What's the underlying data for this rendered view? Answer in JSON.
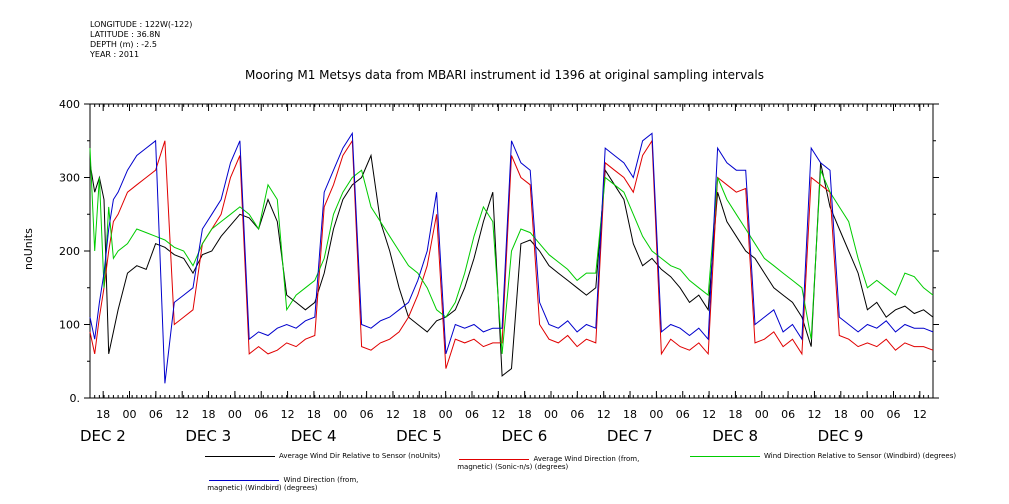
{
  "meta": {
    "longitude": "LONGITUDE : 122W(-122)",
    "latitude": "LATITUDE : 36.8N",
    "depth": "DEPTH (m) : -2.5",
    "year": "YEAR : 2011"
  },
  "chart_data": {
    "type": "line",
    "title": "Mooring M1 Metsys data from MBARI instrument id 1396 at original sampling intervals",
    "ylabel": "noUnits",
    "ylim": [
      0,
      400
    ],
    "yticks": [
      "0.",
      "100",
      "200",
      "300",
      "400"
    ],
    "xlim": [
      0,
      180
    ],
    "hour_ticks": [
      "18",
      "00",
      "06",
      "12",
      "18",
      "00",
      "06",
      "12",
      "18",
      "00",
      "06",
      "12",
      "18",
      "00",
      "06",
      "12",
      "18",
      "00",
      "06",
      "12",
      "18",
      "00",
      "06",
      "12",
      "18",
      "00",
      "06",
      "12",
      "18",
      "00",
      "06",
      "12"
    ],
    "day_labels": [
      "DEC  2",
      "DEC  3",
      "DEC  4",
      "DEC  5",
      "DEC  6",
      "DEC  7",
      "DEC  8",
      "DEC  9"
    ],
    "colors": {
      "black": "#000000",
      "red": "#e00000",
      "green": "#00cc00",
      "blue": "#0000cc"
    },
    "series": [
      {
        "name": "Average Wind Dir Relative to Sensor (noUnits)",
        "color": "#000000",
        "x": [
          0,
          1,
          2,
          3,
          4,
          5,
          6,
          8,
          10,
          12,
          14,
          16,
          18,
          20,
          22,
          24,
          26,
          28,
          30,
          32,
          34,
          36,
          38,
          40,
          42,
          44,
          46,
          48,
          50,
          52,
          54,
          56,
          58,
          60,
          62,
          64,
          66,
          68,
          70,
          72,
          74,
          76,
          78,
          80,
          82,
          84,
          86,
          88,
          90,
          92,
          94,
          96,
          98,
          100,
          102,
          104,
          106,
          108,
          110,
          112,
          114,
          116,
          118,
          120,
          122,
          124,
          126,
          128,
          130,
          132,
          134,
          136,
          138,
          140,
          142,
          144,
          146,
          148,
          150,
          152,
          154,
          156,
          158,
          160,
          162,
          164,
          166,
          168,
          170,
          172,
          174,
          176,
          178,
          180
        ],
        "y": [
          320,
          280,
          300,
          270,
          60,
          90,
          120,
          170,
          180,
          175,
          210,
          205,
          195,
          190,
          170,
          195,
          200,
          220,
          235,
          250,
          245,
          230,
          270,
          240,
          140,
          130,
          120,
          130,
          170,
          230,
          270,
          290,
          300,
          330,
          240,
          200,
          150,
          110,
          100,
          90,
          105,
          110,
          120,
          150,
          190,
          240,
          280,
          30,
          40,
          210,
          215,
          200,
          180,
          170,
          160,
          150,
          140,
          150,
          310,
          290,
          270,
          210,
          180,
          190,
          175,
          165,
          150,
          130,
          140,
          120,
          280,
          240,
          220,
          200,
          190,
          170,
          150,
          140,
          130,
          110,
          70,
          320,
          260,
          230,
          200,
          170,
          120,
          130,
          110,
          120,
          125,
          115,
          120,
          110
        ]
      },
      {
        "name": "Average Wind Direction (from, magnetic) (Sonic-n/s) (degrees)",
        "color": "#e00000",
        "x": [
          0,
          1,
          2,
          3,
          4,
          5,
          6,
          8,
          10,
          12,
          14,
          16,
          18,
          20,
          22,
          24,
          26,
          28,
          30,
          32,
          34,
          36,
          38,
          40,
          42,
          44,
          46,
          48,
          50,
          52,
          54,
          56,
          58,
          60,
          62,
          64,
          66,
          68,
          70,
          72,
          74,
          76,
          78,
          80,
          82,
          84,
          86,
          88,
          90,
          92,
          94,
          96,
          98,
          100,
          102,
          104,
          106,
          108,
          110,
          112,
          114,
          116,
          118,
          120,
          122,
          124,
          126,
          128,
          130,
          132,
          134,
          136,
          138,
          140,
          142,
          144,
          146,
          148,
          150,
          152,
          154,
          156,
          158,
          160,
          162,
          164,
          166,
          168,
          170,
          172,
          174,
          176,
          178,
          180
        ],
        "y": [
          90,
          60,
          110,
          150,
          200,
          240,
          250,
          280,
          290,
          300,
          310,
          350,
          100,
          110,
          120,
          210,
          230,
          250,
          300,
          330,
          60,
          70,
          60,
          65,
          75,
          70,
          80,
          85,
          260,
          290,
          330,
          350,
          70,
          65,
          75,
          80,
          90,
          110,
          140,
          180,
          250,
          40,
          80,
          75,
          80,
          70,
          75,
          75,
          330,
          300,
          290,
          100,
          80,
          75,
          85,
          70,
          80,
          75,
          320,
          310,
          300,
          280,
          330,
          350,
          60,
          80,
          70,
          65,
          75,
          60,
          300,
          290,
          280,
          285,
          75,
          80,
          90,
          70,
          80,
          60,
          300,
          290,
          280,
          85,
          80,
          70,
          75,
          70,
          80,
          65,
          75,
          70,
          70,
          65
        ]
      },
      {
        "name": "Wind Direction Relative to Sensor (Windbird) (degrees)",
        "color": "#00cc00",
        "x": [
          0,
          1,
          2,
          3,
          4,
          5,
          6,
          8,
          10,
          12,
          14,
          16,
          18,
          20,
          22,
          24,
          26,
          28,
          30,
          32,
          34,
          36,
          38,
          40,
          42,
          44,
          46,
          48,
          50,
          52,
          54,
          56,
          58,
          60,
          62,
          64,
          66,
          68,
          70,
          72,
          74,
          76,
          78,
          80,
          82,
          84,
          86,
          88,
          90,
          92,
          94,
          96,
          98,
          100,
          102,
          104,
          106,
          108,
          110,
          112,
          114,
          116,
          118,
          120,
          122,
          124,
          126,
          128,
          130,
          132,
          134,
          136,
          138,
          140,
          142,
          144,
          146,
          148,
          150,
          152,
          154,
          156,
          158,
          160,
          162,
          164,
          166,
          168,
          170,
          172,
          174,
          176,
          178,
          180
        ],
        "y": [
          340,
          200,
          300,
          150,
          260,
          190,
          200,
          210,
          230,
          225,
          220,
          215,
          205,
          200,
          180,
          210,
          230,
          240,
          250,
          260,
          250,
          230,
          290,
          270,
          120,
          140,
          150,
          160,
          190,
          250,
          280,
          300,
          310,
          260,
          240,
          220,
          200,
          180,
          170,
          150,
          120,
          110,
          130,
          170,
          220,
          260,
          240,
          60,
          200,
          230,
          225,
          210,
          195,
          185,
          175,
          160,
          170,
          170,
          300,
          290,
          280,
          250,
          220,
          200,
          190,
          180,
          175,
          160,
          150,
          140,
          300,
          270,
          250,
          230,
          210,
          190,
          180,
          170,
          160,
          150,
          80,
          310,
          280,
          260,
          240,
          190,
          150,
          160,
          150,
          140,
          170,
          165,
          150,
          140
        ]
      },
      {
        "name": "Wind Direction (from, magnetic) (Windbird) (degrees)",
        "color": "#0000cc",
        "x": [
          0,
          1,
          2,
          3,
          4,
          5,
          6,
          8,
          10,
          12,
          14,
          16,
          18,
          20,
          22,
          24,
          26,
          28,
          30,
          32,
          34,
          36,
          38,
          40,
          42,
          44,
          46,
          48,
          50,
          52,
          54,
          56,
          58,
          60,
          62,
          64,
          66,
          68,
          70,
          72,
          74,
          76,
          78,
          80,
          82,
          84,
          86,
          88,
          90,
          92,
          94,
          96,
          98,
          100,
          102,
          104,
          106,
          108,
          110,
          112,
          114,
          116,
          118,
          120,
          122,
          124,
          126,
          128,
          130,
          132,
          134,
          136,
          138,
          140,
          142,
          144,
          146,
          148,
          150,
          152,
          154,
          156,
          158,
          160,
          162,
          164,
          166,
          168,
          170,
          172,
          174,
          176,
          178,
          180
        ],
        "y": [
          110,
          80,
          130,
          170,
          230,
          270,
          280,
          310,
          330,
          340,
          350,
          20,
          130,
          140,
          150,
          230,
          250,
          270,
          320,
          350,
          80,
          90,
          85,
          95,
          100,
          95,
          105,
          110,
          280,
          310,
          340,
          360,
          100,
          95,
          105,
          110,
          120,
          130,
          160,
          200,
          280,
          60,
          100,
          95,
          100,
          90,
          95,
          95,
          350,
          320,
          310,
          130,
          100,
          95,
          105,
          90,
          100,
          95,
          340,
          330,
          320,
          300,
          350,
          360,
          90,
          100,
          95,
          85,
          95,
          80,
          340,
          320,
          310,
          310,
          100,
          110,
          120,
          90,
          100,
          80,
          340,
          320,
          310,
          110,
          100,
          90,
          100,
          95,
          105,
          90,
          100,
          95,
          95,
          90
        ]
      }
    ],
    "legend": [
      {
        "label": "Average Wind Dir Relative to Sensor (noUnits)",
        "color": "#000000"
      },
      {
        "label": "Average Wind Direction (from,\n magnetic) (Sonic-n/s) (degrees)",
        "color": "#e00000"
      },
      {
        "label": "Wind Direction Relative to Sensor (Windbird) (degrees)",
        "color": "#00cc00"
      },
      {
        "label": "Wind Direction (from,\n magnetic) (Windbird) (degrees)",
        "color": "#0000cc"
      }
    ]
  }
}
